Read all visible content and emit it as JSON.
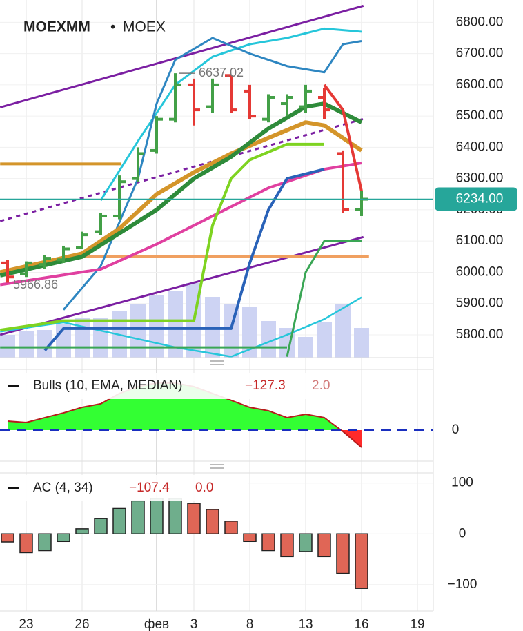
{
  "chart_data": [
    {
      "type": "ohlc",
      "title": "MOEXMM",
      "separator": "•",
      "subtitle": "MOEX",
      "up_color": "#43a047",
      "down_color": "#e53935",
      "ylim": [
        5727,
        6871.5
      ],
      "yticks": [
        {
          "value": 5800,
          "label": "5800.00"
        },
        {
          "value": 5900,
          "label": "5900.00"
        },
        {
          "value": 6000,
          "label": "6000.00"
        },
        {
          "value": 6100,
          "label": "6100.00"
        },
        {
          "value": 6200,
          "label": "6200.00"
        },
        {
          "value": 6300,
          "label": "6300.00"
        },
        {
          "value": 6400,
          "label": "6400.00"
        },
        {
          "value": 6500,
          "label": "6500.00"
        },
        {
          "value": 6600,
          "label": "6600.00"
        },
        {
          "value": 6700,
          "label": "6700.00"
        },
        {
          "value": 6800,
          "label": "6800.00"
        }
      ],
      "open": [
        6030,
        5995,
        6025,
        6040,
        6080,
        6130,
        6180,
        6300,
        6390,
        6490,
        6600,
        6530,
        6630,
        6580,
        6490,
        6540,
        6530,
        6560,
        6380,
        6200
      ],
      "high": [
        6040,
        6035,
        6055,
        6085,
        6130,
        6190,
        6310,
        6400,
        6500,
        6637.02,
        6620,
        6620,
        6630,
        6600,
        6570,
        6570,
        6600,
        6590,
        6390,
        6260
      ],
      "low": [
        5966.86,
        5985,
        6010,
        6030,
        6075,
        6120,
        6170,
        6290,
        6380,
        6480,
        6470,
        6510,
        6510,
        6490,
        6480,
        6500,
        6510,
        6490,
        6190,
        6180
      ],
      "close": [
        5985,
        6030,
        6045,
        6075,
        6120,
        6180,
        6290,
        6380,
        6490,
        6600,
        6520,
        6600,
        6520,
        6500,
        6560,
        6560,
        6580,
        6520,
        6200,
        6234
      ],
      "volumes": [
        33,
        38,
        40,
        48,
        58,
        58,
        68,
        78,
        90,
        96,
        108,
        88,
        78,
        73,
        53,
        43,
        30,
        51,
        78,
        43
      ],
      "volume_color": "#cdd3f3",
      "max_label": 6637.02,
      "min_label": 5966.86,
      "current": {
        "value": 6234,
        "label": "6234.00"
      },
      "current_color": "#26a69a",
      "overlays": [
        {
          "color": "#7b1fa2",
          "width": 3,
          "dash": false,
          "x": [
            -0.4,
            19.1
          ],
          "values": [
            6528,
            6853
          ]
        },
        {
          "color": "#7b1fa2",
          "width": 3,
          "dash": false,
          "x": [
            -0.4,
            19.1
          ],
          "values": [
            5800,
            6113
          ]
        },
        {
          "color": "#7b1fa2",
          "width": 3,
          "dash": true,
          "x": [
            -0.4,
            19.1
          ],
          "values": [
            6164,
            6491
          ]
        },
        {
          "color": "#d4952a",
          "width": 4,
          "dash": false,
          "x": [
            -0.4,
            6.1
          ],
          "values": [
            6347,
            6347
          ]
        },
        {
          "color": "#f0a060",
          "width": 4,
          "dash": false,
          "x": [
            3.8,
            19.4
          ],
          "values": [
            6050,
            6050
          ]
        },
        {
          "color": "#26c6da",
          "width": 3,
          "dash": false,
          "x": [
            5,
            7,
            9,
            11,
            13,
            15,
            17,
            19
          ],
          "values": [
            6230,
            6420,
            6600,
            6690,
            6730,
            6750,
            6780,
            6770
          ]
        },
        {
          "color": "#26c6da",
          "width": 2.5,
          "dash": false,
          "x": [
            -0.4,
            3,
            6,
            9,
            12,
            15,
            17,
            19
          ],
          "values": [
            5810,
            5840,
            5800,
            5760,
            5730,
            5800,
            5850,
            5920
          ]
        },
        {
          "color": "#2e86c1",
          "width": 3,
          "dash": false,
          "x": [
            3,
            5,
            7,
            8,
            9,
            11,
            13,
            15,
            17,
            18,
            19
          ],
          "values": [
            5880,
            6020,
            6300,
            6540,
            6680,
            6750,
            6700,
            6660,
            6640,
            6730,
            6740
          ]
        },
        {
          "color": "#e040a0",
          "width": 4,
          "dash": false,
          "x": [
            -0.4,
            5,
            8,
            11,
            14,
            17,
            19
          ],
          "values": [
            5960,
            6010,
            6090,
            6180,
            6270,
            6330,
            6350
          ]
        },
        {
          "color": "#d4952a",
          "width": 6,
          "dash": false,
          "x": [
            -0.4,
            4,
            6,
            8,
            10,
            12,
            14,
            16,
            17,
            19
          ],
          "values": [
            6000,
            6060,
            6140,
            6250,
            6320,
            6380,
            6430,
            6480,
            6470,
            6390
          ]
        },
        {
          "color": "#2e8b3a",
          "width": 6,
          "dash": false,
          "x": [
            -0.4,
            4,
            8,
            10,
            12,
            14,
            16,
            17,
            19
          ],
          "values": [
            5990,
            6050,
            6200,
            6300,
            6370,
            6460,
            6530,
            6540,
            6480
          ]
        },
        {
          "color": "#7ed321",
          "width": 4,
          "dash": false,
          "x": [
            -0.4,
            3,
            10,
            11,
            12,
            13,
            15,
            17
          ],
          "values": [
            5815,
            5845,
            5845,
            6150,
            6300,
            6360,
            6410,
            6410
          ]
        },
        {
          "color": "#2962b8",
          "width": 4,
          "dash": false,
          "x": [
            2,
            3,
            12,
            13,
            14,
            15,
            17
          ],
          "values": [
            5750,
            5820,
            5820,
            6030,
            6200,
            6300,
            6330
          ]
        },
        {
          "color": "#e53935",
          "width": 4,
          "dash": false,
          "x": [
            17,
            18,
            19
          ],
          "values": [
            6600,
            6520,
            6260
          ]
        },
        {
          "color": "#3aa655",
          "width": 3,
          "dash": false,
          "x": [
            15,
            16,
            17,
            19
          ],
          "values": [
            5730,
            6000,
            6100,
            6100
          ]
        },
        {
          "color": "#3aa655",
          "width": 3,
          "dash": false,
          "x": [
            -0.4,
            15
          ],
          "values": [
            5760,
            5760
          ]
        }
      ]
    },
    {
      "type": "area",
      "legend": "Bulls (10, EMA, MEDIAN)",
      "last_values": [
        "−127.3",
        "2.0"
      ],
      "ylim": [
        -229,
        448
      ],
      "yticks": [
        0
      ],
      "pos_color": "#33ff33",
      "neg_color": "#ff2a2a",
      "line_color": "#b71c1c",
      "zero_color": "#1a2fbf",
      "values": [
        66,
        56,
        92,
        127,
        168,
        194,
        270,
        321,
        347,
        347,
        321,
        270,
        220,
        168,
        143,
        92,
        117,
        92,
        -10,
        -127.3,
        null,
        null,
        null
      ]
    },
    {
      "type": "bar",
      "legend": "AC (4, 34)",
      "last_values": [
        "−107.4",
        "0.0"
      ],
      "ylim": [
        -152,
        120
      ],
      "yticks": [
        100,
        0,
        {
          "value": -100,
          "label": "−100"
        }
      ],
      "categories": [
        null,
        "23",
        null,
        null,
        "26",
        null,
        null,
        null,
        "фев",
        null,
        "3",
        null,
        null,
        "8",
        null,
        null,
        "13",
        null,
        null,
        "16",
        null,
        null,
        "19"
      ],
      "values": [
        -16,
        -37,
        -33,
        -15,
        10,
        30,
        50,
        65,
        70,
        70,
        60,
        48,
        25,
        -15,
        -33,
        -45,
        -35,
        -45,
        -78,
        -107.4,
        null,
        null,
        null
      ],
      "colors": [
        "#e06656",
        "#e06656",
        "#6fae8c",
        "#6fae8c",
        "#6fae8c",
        "#6fae8c",
        "#6fae8c",
        "#6fae8c",
        "#6fae8c",
        "#6fae8c",
        "#e06656",
        "#e06656",
        "#e06656",
        "#e06656",
        "#e06656",
        "#e06656",
        "#6fae8c",
        "#e06656",
        "#e06656",
        "#e06656",
        null,
        null,
        null
      ]
    }
  ]
}
